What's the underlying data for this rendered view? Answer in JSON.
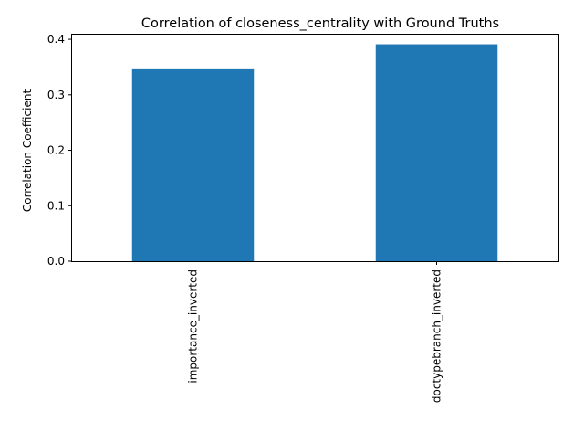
{
  "chart_data": {
    "type": "bar",
    "title": "Correlation of closeness_centrality with Ground Truths",
    "xlabel": "",
    "ylabel": "Correlation Coefficient",
    "categories": [
      "importance_inverted",
      "doctypebranch_inverted"
    ],
    "values": [
      0.346,
      0.391
    ],
    "ylim": [
      0,
      0.41
    ],
    "yticks": [
      0.0,
      0.1,
      0.2,
      0.3,
      0.4
    ],
    "ytick_labels": [
      "0.0",
      "0.1",
      "0.2",
      "0.3",
      "0.4"
    ],
    "grid": false,
    "legend": "none",
    "bar_color": "#1f77b4"
  }
}
